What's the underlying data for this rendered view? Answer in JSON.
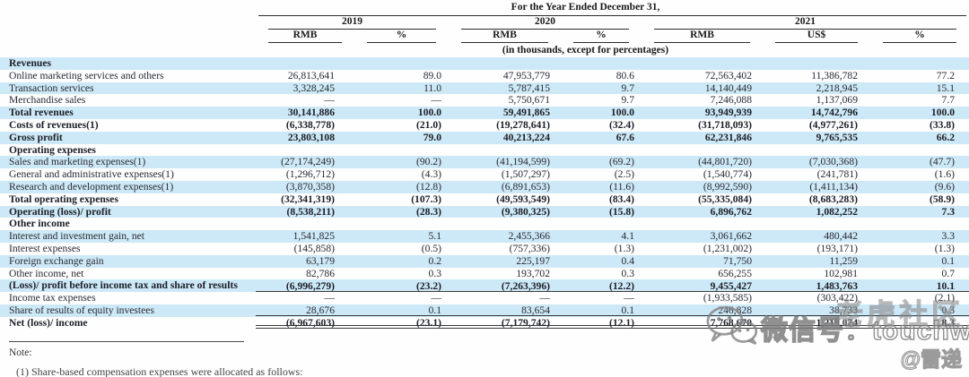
{
  "header": {
    "title": "For the Year Ended December 31,",
    "years": [
      {
        "label": "2019"
      },
      {
        "label": "2020"
      },
      {
        "label": "2021"
      }
    ],
    "columns": [
      "RMB",
      "%",
      "RMB",
      "%",
      "RMB",
      "US$",
      "%"
    ],
    "units_note": "(in thousands, except for percentages)"
  },
  "table": {
    "rows": [
      {
        "label": "Revenues",
        "section": true,
        "bold": true,
        "values": [
          "",
          "",
          "",
          "",
          "",
          "",
          ""
        ]
      },
      {
        "label": "Online marketing services and others",
        "values": [
          "26,813,641",
          "89.0",
          "47,953,779",
          "80.6",
          "72,563,402",
          "11,386,782",
          "77.2"
        ]
      },
      {
        "label": "Transaction services",
        "values": [
          "3,328,245",
          "11.0",
          "5,787,415",
          "9.7",
          "14,140,449",
          "2,218,945",
          "15.1"
        ]
      },
      {
        "label": "Merchandise sales",
        "values": [
          "—",
          "—",
          "5,750,671",
          "9.7",
          "7,246,088",
          "1,137,069",
          "7.7"
        ]
      },
      {
        "label": "Total revenues",
        "bold": true,
        "values": [
          "30,141,886",
          "100.0",
          "59,491,865",
          "100.0",
          "93,949,939",
          "14,742,796",
          "100.0"
        ]
      },
      {
        "label": "Costs of revenues(1)",
        "bold": true,
        "values": [
          "(6,338,778)",
          "(21.0)",
          "(19,278,641)",
          "(32.4)",
          "(31,718,093)",
          "(4,977,261)",
          "(33.8)"
        ]
      },
      {
        "label": "Gross profit",
        "bold": true,
        "values": [
          "23,803,108",
          "79.0",
          "40,213,224",
          "67.6",
          "62,231,846",
          "9,765,535",
          "66.2"
        ]
      },
      {
        "label": "Operating expenses",
        "section": true,
        "bold": true,
        "values": [
          "",
          "",
          "",
          "",
          "",
          "",
          ""
        ]
      },
      {
        "label": "Sales and marketing expenses(1)",
        "values": [
          "(27,174,249)",
          "(90.2)",
          "(41,194,599)",
          "(69.2)",
          "(44,801,720)",
          "(7,030,368)",
          "(47.7)"
        ]
      },
      {
        "label": "General and administrative expenses(1)",
        "values": [
          "(1,296,712)",
          "(4.3)",
          "(1,507,297)",
          "(2.5)",
          "(1,540,774)",
          "(241,781)",
          "(1.6)"
        ]
      },
      {
        "label": "Research and development expenses(1)",
        "values": [
          "(3,870,358)",
          "(12.8)",
          "(6,891,653)",
          "(11.6)",
          "(8,992,590)",
          "(1,411,134)",
          "(9.6)"
        ]
      },
      {
        "label": "Total operating expenses",
        "bold": true,
        "values": [
          "(32,341,319)",
          "(107.3)",
          "(49,593,549)",
          "(83.4)",
          "(55,335,084)",
          "(8,683,283)",
          "(58.9)"
        ]
      },
      {
        "label": "Operating (loss)/ profit",
        "bold": true,
        "values": [
          "(8,538,211)",
          "(28.3)",
          "(9,380,325)",
          "(15.8)",
          "6,896,762",
          "1,082,252",
          "7.3"
        ]
      },
      {
        "label": "Other income",
        "section": true,
        "bold": true,
        "values": [
          "",
          "",
          "",
          "",
          "",
          "",
          ""
        ]
      },
      {
        "label": "Interest and investment gain, net",
        "values": [
          "1,541,825",
          "5.1",
          "2,455,366",
          "4.1",
          "3,061,662",
          "480,442",
          "3.3"
        ]
      },
      {
        "label": "Interest expenses",
        "values": [
          "(145,858)",
          "(0.5)",
          "(757,336)",
          "(1.3)",
          "(1,231,002)",
          "(193,171)",
          "(1.3)"
        ]
      },
      {
        "label": "Foreign exchange gain",
        "values": [
          "63,179",
          "0.2",
          "225,197",
          "0.4",
          "71,750",
          "11,259",
          "0.1"
        ]
      },
      {
        "label": "Other income, net",
        "values": [
          "82,786",
          "0.3",
          "193,702",
          "0.3",
          "656,255",
          "102,981",
          "0.7"
        ]
      },
      {
        "label": "(Loss)/ profit before income tax and share of results",
        "bold": true,
        "rule": "single",
        "values": [
          "(6,996,279)",
          "(23.2)",
          "(7,263,396)",
          "(12.2)",
          "9,455,427",
          "1,483,763",
          "10.1"
        ]
      },
      {
        "label": "Income tax expenses",
        "values": [
          "—",
          "—",
          "—",
          "—",
          "(1,933,585)",
          "(303,422)",
          "(2.1)"
        ]
      },
      {
        "label": "Share of results of equity investees",
        "rule": "single",
        "values": [
          "28,676",
          "0.1",
          "83,654",
          "0.1",
          "246,828",
          "38,733",
          "0.3"
        ]
      },
      {
        "label": "Net (loss)/ income",
        "bold": true,
        "rule": "double",
        "values": [
          "(6,967,603)",
          "(23.1)",
          "(7,179,742)",
          "(12.1)",
          "7,768,670",
          "1,219,074",
          "8.3"
        ]
      }
    ]
  },
  "note": {
    "title": "Note:",
    "footnote": "(1)   Share-based compensation expenses were allocated as follows:"
  },
  "watermark": {
    "community": "老虎社区",
    "wechat_label": "微信号：touchweb",
    "author": "@雷递"
  }
}
